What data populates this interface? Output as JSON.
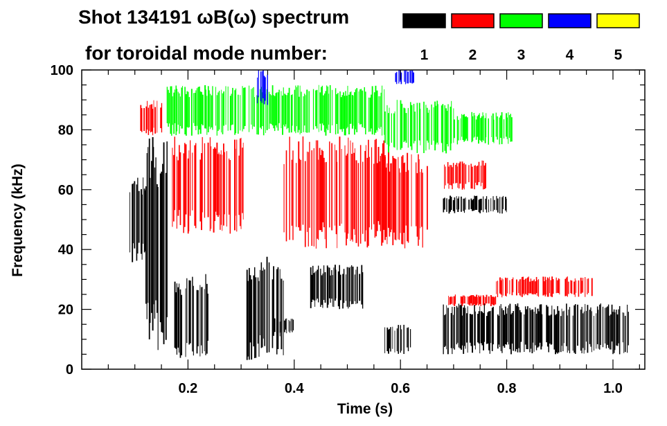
{
  "chart_data": {
    "type": "heatmap",
    "title_line1": "Shot 134191 ωB(ω) spectrum",
    "title_line2": "for toroidal mode number:",
    "xlabel": "Time (s)",
    "ylabel": "Frequency (kHz)",
    "xlim": [
      0.0,
      1.06
    ],
    "ylim": [
      0,
      100
    ],
    "x_ticks": [
      0.2,
      0.4,
      0.6,
      0.8,
      1.0
    ],
    "x_tick_labels": [
      "0.2",
      "0.4",
      "0.6",
      "0.8",
      "1.0"
    ],
    "y_ticks": [
      0,
      20,
      40,
      60,
      80,
      100
    ],
    "y_tick_labels": [
      "0",
      "20",
      "40",
      "60",
      "80",
      "100"
    ],
    "legend": [
      {
        "label": "1",
        "color": "#000000"
      },
      {
        "label": "2",
        "color": "#ff0000"
      },
      {
        "label": "3",
        "color": "#00ff00"
      },
      {
        "label": "4",
        "color": "#0000ff"
      },
      {
        "label": "5",
        "color": "#ffff00"
      }
    ],
    "series": [
      {
        "mode": 1,
        "color": "#000000",
        "regions": [
          {
            "t": [
              0.09,
              0.12
            ],
            "f": [
              35,
              65
            ]
          },
          {
            "t": [
              0.12,
              0.16
            ],
            "f": [
              5,
              78
            ]
          },
          {
            "t": [
              0.17,
              0.24
            ],
            "f": [
              3,
              32
            ]
          },
          {
            "t": [
              0.31,
              0.38
            ],
            "f": [
              3,
              38
            ]
          },
          {
            "t": [
              0.36,
              0.4
            ],
            "f": [
              12,
              17
            ]
          },
          {
            "t": [
              0.43,
              0.53
            ],
            "f": [
              20,
              35
            ]
          },
          {
            "t": [
              0.57,
              0.62
            ],
            "f": [
              5,
              15
            ]
          },
          {
            "t": [
              0.68,
              1.03
            ],
            "f": [
              5,
              22
            ]
          },
          {
            "t": [
              0.68,
              0.8
            ],
            "f": [
              52,
              58
            ]
          }
        ]
      },
      {
        "mode": 2,
        "color": "#ff0000",
        "regions": [
          {
            "t": [
              0.11,
              0.15
            ],
            "f": [
              78,
              90
            ]
          },
          {
            "t": [
              0.17,
              0.31
            ],
            "f": [
              45,
              78
            ]
          },
          {
            "t": [
              0.38,
              0.57
            ],
            "f": [
              40,
              78
            ]
          },
          {
            "t": [
              0.57,
              0.65
            ],
            "f": [
              40,
              73
            ]
          },
          {
            "t": [
              0.68,
              0.76
            ],
            "f": [
              60,
              70
            ]
          },
          {
            "t": [
              0.69,
              0.78
            ],
            "f": [
              21,
              25
            ]
          },
          {
            "t": [
              0.78,
              0.96
            ],
            "f": [
              24,
              31
            ]
          }
        ]
      },
      {
        "mode": 3,
        "color": "#00ff00",
        "regions": [
          {
            "t": [
              0.16,
              0.57
            ],
            "f": [
              78,
              95
            ]
          },
          {
            "t": [
              0.57,
              0.7
            ],
            "f": [
              72,
              90
            ]
          },
          {
            "t": [
              0.7,
              0.81
            ],
            "f": [
              75,
              86
            ]
          }
        ]
      },
      {
        "mode": 4,
        "color": "#0000ff",
        "regions": [
          {
            "t": [
              0.33,
              0.35
            ],
            "f": [
              88,
              100
            ]
          },
          {
            "t": [
              0.59,
              0.63
            ],
            "f": [
              95,
              100
            ]
          }
        ]
      },
      {
        "mode": 5,
        "color": "#ffff00",
        "regions": []
      }
    ]
  }
}
